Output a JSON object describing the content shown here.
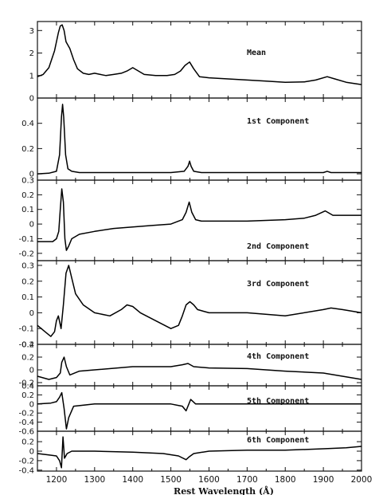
{
  "figure": {
    "xlabel": "Rest Wavelength (Å)",
    "xlim": [
      1150,
      2000
    ],
    "xticks": [
      "1200",
      "1300",
      "1400",
      "1500",
      "1600",
      "1700",
      "1800",
      "1900",
      "2000"
    ]
  },
  "chart_data": [
    {
      "type": "line",
      "title": "Mean",
      "ylim": [
        0,
        3.4
      ],
      "yticks": [
        "0",
        "1",
        "2",
        "3"
      ],
      "series": [
        {
          "x": [
            1150,
            1165,
            1180,
            1195,
            1205,
            1210,
            1215,
            1220,
            1225,
            1235,
            1245,
            1255,
            1270,
            1285,
            1300,
            1315,
            1330,
            1350,
            1370,
            1385,
            1400,
            1415,
            1430,
            1460,
            1490,
            1510,
            1525,
            1537,
            1549,
            1560,
            1575,
            1600,
            1650,
            1700,
            1750,
            1800,
            1850,
            1880,
            1910,
            1930,
            1960,
            2000
          ],
          "y": [
            0.95,
            1.05,
            1.35,
            2.1,
            2.9,
            3.2,
            3.25,
            3.0,
            2.5,
            2.2,
            1.7,
            1.3,
            1.1,
            1.05,
            1.1,
            1.05,
            1.0,
            1.05,
            1.1,
            1.2,
            1.35,
            1.2,
            1.05,
            1.0,
            1.0,
            1.05,
            1.2,
            1.45,
            1.6,
            1.3,
            0.95,
            0.9,
            0.85,
            0.8,
            0.75,
            0.7,
            0.72,
            0.8,
            0.95,
            0.85,
            0.7,
            0.6
          ]
        }
      ]
    },
    {
      "type": "line",
      "title": "1st Component",
      "ylim": [
        -0.05,
        0.6
      ],
      "yticks": [
        "0",
        "0.2",
        "0.4"
      ],
      "series": [
        {
          "x": [
            1150,
            1180,
            1200,
            1208,
            1213,
            1216,
            1219,
            1224,
            1230,
            1240,
            1260,
            1300,
            1400,
            1500,
            1535,
            1545,
            1549,
            1553,
            1560,
            1580,
            1700,
            1800,
            1900,
            1910,
            1920,
            2000
          ],
          "y": [
            0,
            0.005,
            0.02,
            0.15,
            0.45,
            0.55,
            0.45,
            0.15,
            0.04,
            0.02,
            0.01,
            0.01,
            0.01,
            0.01,
            0.02,
            0.06,
            0.1,
            0.06,
            0.02,
            0.01,
            0.01,
            0.01,
            0.01,
            0.02,
            0.01,
            0.01
          ]
        }
      ]
    },
    {
      "type": "line",
      "title": "2nd Component",
      "ylim": [
        -0.25,
        0.3
      ],
      "yticks": [
        "0.3",
        "0.2",
        "0.1",
        "0",
        "-0.1",
        "-0.2"
      ],
      "series": [
        {
          "x": [
            1150,
            1170,
            1190,
            1200,
            1206,
            1210,
            1214,
            1218,
            1222,
            1226,
            1232,
            1240,
            1260,
            1300,
            1350,
            1400,
            1450,
            1500,
            1530,
            1540,
            1548,
            1555,
            1565,
            1580,
            1620,
            1700,
            1800,
            1850,
            1880,
            1905,
            1925,
            1960,
            2000
          ],
          "y": [
            -0.12,
            -0.12,
            -0.12,
            -0.1,
            -0.05,
            0.1,
            0.24,
            0.15,
            -0.1,
            -0.18,
            -0.15,
            -0.1,
            -0.07,
            -0.05,
            -0.03,
            -0.02,
            -0.01,
            0.0,
            0.03,
            0.08,
            0.15,
            0.08,
            0.03,
            0.02,
            0.02,
            0.02,
            0.03,
            0.04,
            0.06,
            0.09,
            0.06,
            0.06,
            0.06
          ]
        }
      ]
    },
    {
      "type": "line",
      "title": "3rd Component",
      "ylim": [
        -0.2,
        0.33
      ],
      "yticks": [
        "0.3",
        "0.2",
        "0.1",
        "0",
        "-0.1",
        "-0.2"
      ],
      "series": [
        {
          "x": [
            1150,
            1170,
            1185,
            1195,
            1200,
            1205,
            1212,
            1218,
            1225,
            1232,
            1240,
            1250,
            1270,
            1300,
            1340,
            1370,
            1385,
            1400,
            1420,
            1460,
            1500,
            1520,
            1530,
            1540,
            1550,
            1560,
            1570,
            1600,
            1700,
            1800,
            1900,
            1920,
            1950,
            2000
          ],
          "y": [
            -0.08,
            -0.12,
            -0.15,
            -0.12,
            -0.05,
            -0.02,
            -0.1,
            0.05,
            0.25,
            0.3,
            0.22,
            0.12,
            0.05,
            0.0,
            -0.02,
            0.02,
            0.05,
            0.04,
            0.0,
            -0.05,
            -0.1,
            -0.08,
            -0.02,
            0.05,
            0.07,
            0.05,
            0.02,
            0.0,
            0.0,
            -0.02,
            0.02,
            0.03,
            0.02,
            0.0
          ]
        }
      ]
    },
    {
      "type": "line",
      "title": "4th Component",
      "ylim": [
        -0.25,
        0.4
      ],
      "yticks": [
        "0.4",
        "0.2",
        "0",
        "-0.2"
      ],
      "series": [
        {
          "x": [
            1150,
            1180,
            1200,
            1210,
            1214,
            1220,
            1226,
            1235,
            1260,
            1300,
            1400,
            1500,
            1530,
            1545,
            1560,
            1600,
            1700,
            1800,
            1900,
            1950,
            2000
          ],
          "y": [
            -0.1,
            -0.15,
            -0.12,
            -0.05,
            0.12,
            0.2,
            0.05,
            -0.08,
            -0.02,
            0.0,
            0.05,
            0.05,
            0.08,
            0.1,
            0.05,
            0.03,
            0.02,
            -0.02,
            -0.05,
            -0.1,
            -0.15
          ]
        }
      ]
    },
    {
      "type": "line",
      "title": "5th Component",
      "ylim": [
        -0.6,
        0.4
      ],
      "yticks": [
        "0.4",
        "0.2",
        "0",
        "-0.2",
        "-0.4",
        "-0.6"
      ],
      "series": [
        {
          "x": [
            1150,
            1185,
            1200,
            1208,
            1214,
            1220,
            1226,
            1232,
            1245,
            1300,
            1400,
            1500,
            1530,
            1540,
            1552,
            1565,
            1600,
            1700,
            1800,
            1900,
            2000
          ],
          "y": [
            0.0,
            0.02,
            0.05,
            0.15,
            0.25,
            -0.1,
            -0.55,
            -0.3,
            -0.05,
            0.0,
            0.0,
            0.0,
            -0.05,
            -0.15,
            0.1,
            0.0,
            0.0,
            0.0,
            0.0,
            0.0,
            0.0
          ]
        }
      ]
    },
    {
      "type": "line",
      "title": "6th Component",
      "ylim": [
        -0.42,
        0.42
      ],
      "yticks": [
        "0.2",
        "0",
        "-0.2",
        "-0.4"
      ],
      "series": [
        {
          "x": [
            1150,
            1180,
            1200,
            1208,
            1213,
            1217,
            1221,
            1228,
            1240,
            1300,
            1400,
            1480,
            1520,
            1540,
            1548,
            1560,
            1600,
            1700,
            1800,
            1900,
            1960,
            2000
          ],
          "y": [
            -0.05,
            -0.08,
            -0.1,
            -0.2,
            -0.35,
            0.3,
            -0.15,
            -0.05,
            0.0,
            0.0,
            -0.02,
            -0.05,
            -0.1,
            -0.18,
            -0.12,
            -0.05,
            0.0,
            0.02,
            0.02,
            0.05,
            0.07,
            0.1
          ]
        }
      ]
    }
  ]
}
